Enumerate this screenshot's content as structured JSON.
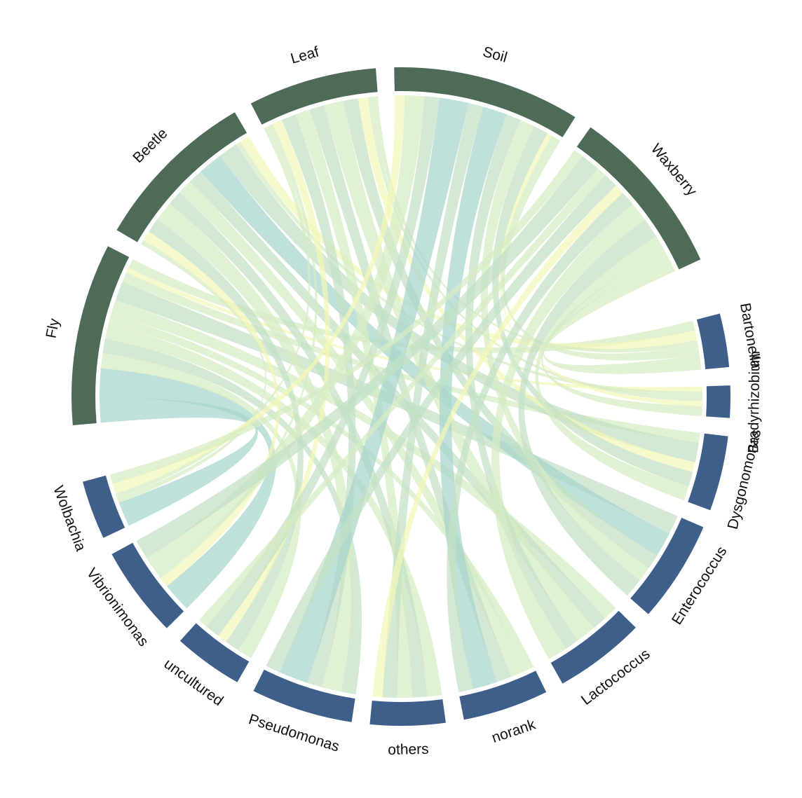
{
  "chart_data": {
    "type": "chord",
    "title": "",
    "colors": {
      "sample_block": "#4d6b57",
      "genus_block": "#3d5f8a",
      "ribbon_palette": [
        "#f3f7b7",
        "#d6ebc4",
        "#c2e0c5",
        "#a7d4cd"
      ]
    },
    "samples": [
      "Fly",
      "Beetle",
      "Leaf",
      "Soil",
      "Waxberry"
    ],
    "genera": [
      "Bartonella",
      "Bradyrhizobium",
      "Dysgonomonas",
      "Enterococcus",
      "Lactococcus",
      "norank",
      "others",
      "Pseudomonas",
      "uncultured",
      "Vibrionimonas",
      "Wolbachia"
    ],
    "links": [
      {
        "sample": "Fly",
        "genus": "Wolbachia",
        "value": 5
      },
      {
        "sample": "Fly",
        "genus": "Vibrionimonas",
        "value": 6
      },
      {
        "sample": "Fly",
        "genus": "uncultured",
        "value": 3
      },
      {
        "sample": "Fly",
        "genus": "Pseudomonas",
        "value": 3
      },
      {
        "sample": "Fly",
        "genus": "others",
        "value": 3
      },
      {
        "sample": "Fly",
        "genus": "norank",
        "value": 2
      },
      {
        "sample": "Fly",
        "genus": "Lactococcus",
        "value": 3
      },
      {
        "sample": "Fly",
        "genus": "Enterococcus",
        "value": 4
      },
      {
        "sample": "Fly",
        "genus": "Dysgonomonas",
        "value": 2
      },
      {
        "sample": "Fly",
        "genus": "Bradyrhizobium",
        "value": 1
      },
      {
        "sample": "Fly",
        "genus": "Bartonella",
        "value": 2
      },
      {
        "sample": "Beetle",
        "genus": "Wolbachia",
        "value": 1
      },
      {
        "sample": "Beetle",
        "genus": "Vibrionimonas",
        "value": 2
      },
      {
        "sample": "Beetle",
        "genus": "uncultured",
        "value": 3
      },
      {
        "sample": "Beetle",
        "genus": "Pseudomonas",
        "value": 4
      },
      {
        "sample": "Beetle",
        "genus": "others",
        "value": 3
      },
      {
        "sample": "Beetle",
        "genus": "norank",
        "value": 3
      },
      {
        "sample": "Beetle",
        "genus": "Lactococcus",
        "value": 3
      },
      {
        "sample": "Beetle",
        "genus": "Enterococcus",
        "value": 5
      },
      {
        "sample": "Beetle",
        "genus": "Dysgonomonas",
        "value": 4
      },
      {
        "sample": "Beetle",
        "genus": "Bradyrhizobium",
        "value": 1
      },
      {
        "sample": "Beetle",
        "genus": "Bartonella",
        "value": 2
      },
      {
        "sample": "Leaf",
        "genus": "Wolbachia",
        "value": 1
      },
      {
        "sample": "Leaf",
        "genus": "Vibrionimonas",
        "value": 1
      },
      {
        "sample": "Leaf",
        "genus": "uncultured",
        "value": 2
      },
      {
        "sample": "Leaf",
        "genus": "Pseudomonas",
        "value": 3
      },
      {
        "sample": "Leaf",
        "genus": "others",
        "value": 3
      },
      {
        "sample": "Leaf",
        "genus": "norank",
        "value": 3
      },
      {
        "sample": "Leaf",
        "genus": "Lactococcus",
        "value": 4
      },
      {
        "sample": "Leaf",
        "genus": "Enterococcus",
        "value": 3
      },
      {
        "sample": "Leaf",
        "genus": "Dysgonomonas",
        "value": 2
      },
      {
        "sample": "Leaf",
        "genus": "Bradyrhizobium",
        "value": 1
      },
      {
        "sample": "Leaf",
        "genus": "Bartonella",
        "value": 1
      },
      {
        "sample": "Soil",
        "genus": "Wolbachia",
        "value": 2
      },
      {
        "sample": "Soil",
        "genus": "Vibrionimonas",
        "value": 4
      },
      {
        "sample": "Soil",
        "genus": "uncultured",
        "value": 3
      },
      {
        "sample": "Soil",
        "genus": "Pseudomonas",
        "value": 6
      },
      {
        "sample": "Soil",
        "genus": "others",
        "value": 3
      },
      {
        "sample": "Soil",
        "genus": "norank",
        "value": 5
      },
      {
        "sample": "Soil",
        "genus": "Lactococcus",
        "value": 3
      },
      {
        "sample": "Soil",
        "genus": "Enterococcus",
        "value": 3
      },
      {
        "sample": "Soil",
        "genus": "Dysgonomonas",
        "value": 3
      },
      {
        "sample": "Soil",
        "genus": "Bradyrhizobium",
        "value": 1
      },
      {
        "sample": "Soil",
        "genus": "Bartonella",
        "value": 2
      },
      {
        "sample": "Waxberry",
        "genus": "Wolbachia",
        "value": 2
      },
      {
        "sample": "Waxberry",
        "genus": "Vibrionimonas",
        "value": 4
      },
      {
        "sample": "Waxberry",
        "genus": "uncultured",
        "value": 2
      },
      {
        "sample": "Waxberry",
        "genus": "Pseudomonas",
        "value": 3
      },
      {
        "sample": "Waxberry",
        "genus": "others",
        "value": 2
      },
      {
        "sample": "Waxberry",
        "genus": "norank",
        "value": 3
      },
      {
        "sample": "Waxberry",
        "genus": "Lactococcus",
        "value": 4
      },
      {
        "sample": "Waxberry",
        "genus": "Enterococcus",
        "value": 4
      },
      {
        "sample": "Waxberry",
        "genus": "Dysgonomonas",
        "value": 3
      },
      {
        "sample": "Waxberry",
        "genus": "Bradyrhizobium",
        "value": 2
      },
      {
        "sample": "Waxberry",
        "genus": "Bartonella",
        "value": 3
      }
    ]
  }
}
